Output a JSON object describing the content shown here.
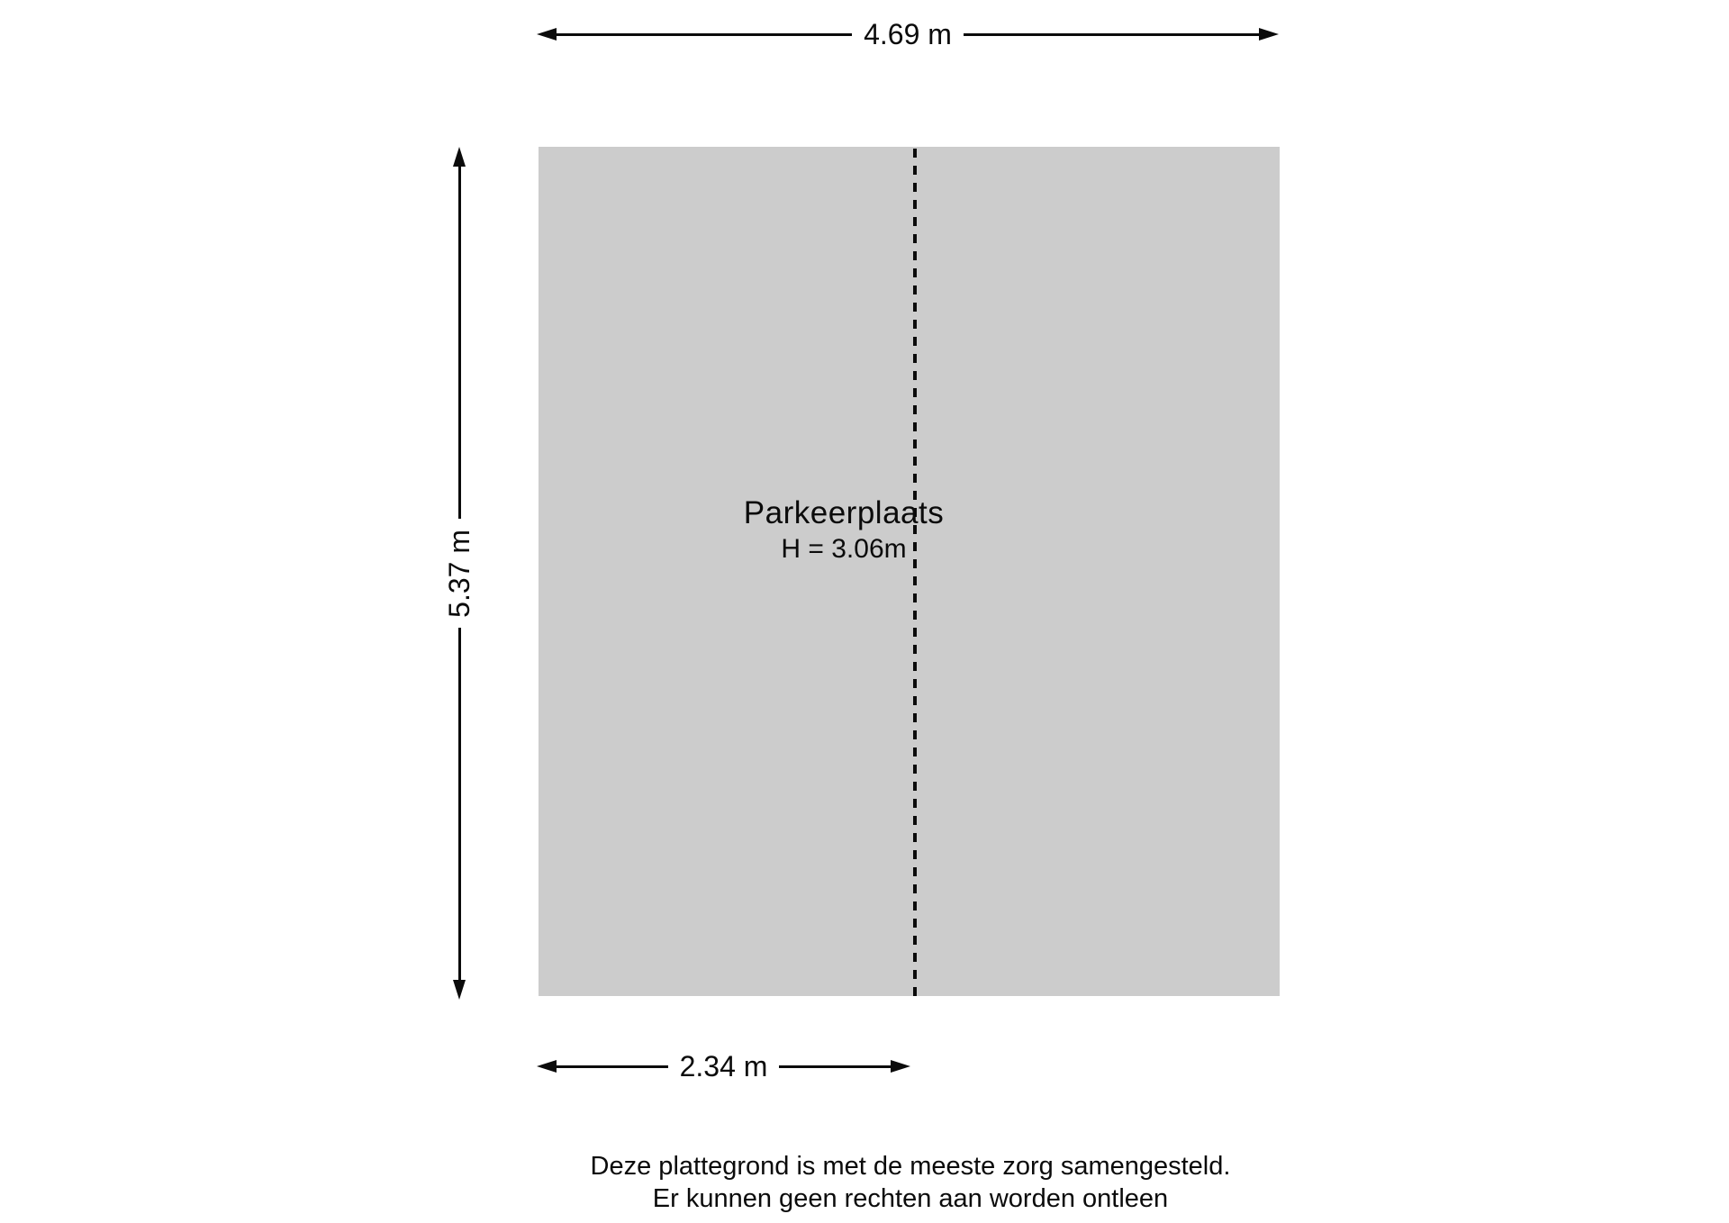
{
  "floorplan": {
    "room": {
      "name": "Parkeerplaats",
      "height_label": "H = 3.06m"
    },
    "dimensions": {
      "total_width": "4.69 m",
      "total_height": "5.37 m",
      "partial_width": "2.34 m"
    },
    "disclaimer": {
      "line1": "Deze plattegrond is met de meeste zorg samengesteld.",
      "line2": "Er kunnen geen rechten aan worden ontleen"
    },
    "colors": {
      "room_fill": "#cccccc",
      "ink": "#0b0b0b",
      "background": "#ffffff"
    }
  }
}
